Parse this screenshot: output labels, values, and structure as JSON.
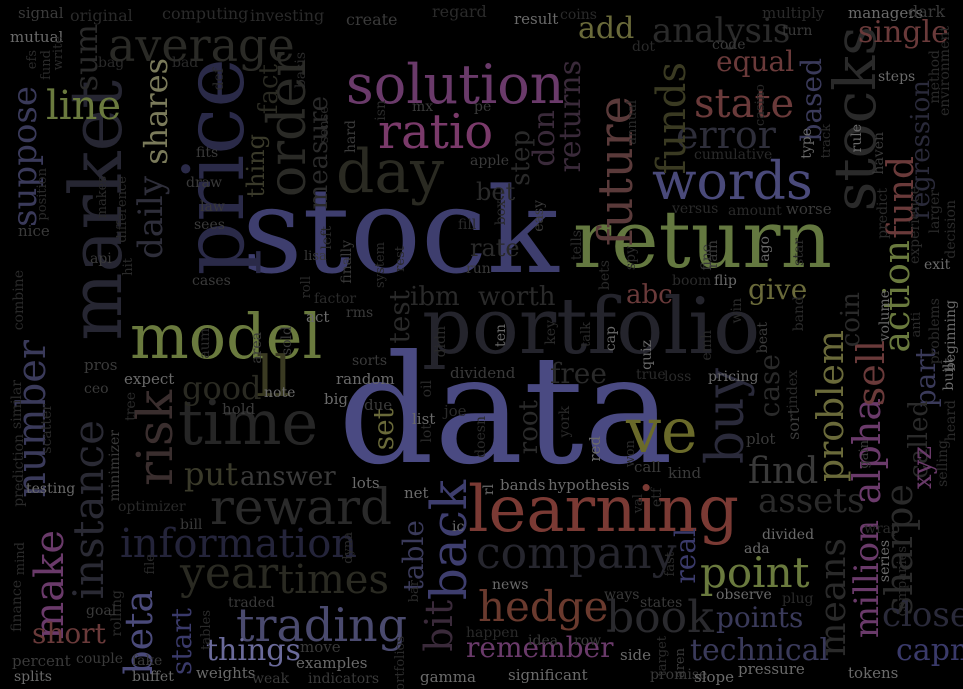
{
  "words": [
    {
      "text": "data",
      "color": "#4a4a82"
    },
    {
      "text": "stock",
      "color": "#3e3e6e"
    },
    {
      "text": "return",
      "color": "#647840"
    },
    {
      "text": "price",
      "color": "#2a2a48"
    },
    {
      "text": "market",
      "color": "#262632"
    },
    {
      "text": "portfolio",
      "color": "#24242c"
    },
    {
      "text": "model",
      "color": "#6a7a3e"
    },
    {
      "text": "learning",
      "color": "#7a3a34"
    },
    {
      "text": "solution",
      "color": "#6a3a6a"
    },
    {
      "text": "ratio",
      "color": "#7a3a6a"
    },
    {
      "text": "time",
      "color": "#262626"
    },
    {
      "text": "ve",
      "color": "#6a6a2a"
    },
    {
      "text": "words",
      "color": "#4a4a7a"
    },
    {
      "text": "day",
      "color": "#2a2a22"
    },
    {
      "text": "order",
      "color": "#2a2a26"
    },
    {
      "text": "reward",
      "color": "#2a2a2a"
    },
    {
      "text": "information",
      "color": "#24243a"
    },
    {
      "text": "company",
      "color": "#26262e"
    },
    {
      "text": "average",
      "color": "#2a2a26"
    },
    {
      "text": "stocks",
      "color": "#2a2a2a"
    },
    {
      "text": "state",
      "color": "#6a3a3a"
    },
    {
      "text": "future",
      "color": "#5a3a3a"
    },
    {
      "text": "error",
      "color": "#2e2e3a"
    },
    {
      "text": "funds",
      "color": "#3a3a22"
    },
    {
      "text": "analysis",
      "color": "#2a2a2a"
    },
    {
      "text": "back",
      "color": "#3e3e6e"
    },
    {
      "text": "bit",
      "color": "#3a2a3a"
    },
    {
      "text": "hedge",
      "color": "#6a3a2e"
    },
    {
      "text": "book",
      "color": "#2a2a2e"
    },
    {
      "text": "point",
      "color": "#6a7a3e"
    },
    {
      "text": "trading",
      "color": "#4a4a6e"
    },
    {
      "text": "beta",
      "color": "#4a4a7a"
    },
    {
      "text": "risk",
      "color": "#3a2e2e"
    },
    {
      "text": "make",
      "color": "#6a3a6a"
    },
    {
      "text": "number",
      "color": "#3a3a5a"
    },
    {
      "text": "instance",
      "color": "#2a2a34"
    },
    {
      "text": "line",
      "color": "#6a7a3e"
    },
    {
      "text": "suppose",
      "color": "#3a3a5a"
    },
    {
      "text": "shares",
      "color": "#7a7a5a"
    },
    {
      "text": "daily",
      "color": "#2e2e3a"
    },
    {
      "text": "sum",
      "color": "#2a2a2a"
    },
    {
      "text": "buy",
      "color": "#2a2a3a"
    },
    {
      "text": "find",
      "color": "#3a3a3a"
    },
    {
      "text": "assets",
      "color": "#2a2a2a"
    },
    {
      "text": "means",
      "color": "#2a2a2a"
    },
    {
      "text": "problem",
      "color": "#6a6a3a"
    },
    {
      "text": "alpha",
      "color": "#6a3a6a"
    },
    {
      "text": "sell",
      "color": "#6a3a3a"
    },
    {
      "text": "action",
      "color": "#6a7a3e"
    },
    {
      "text": "fund",
      "color": "#6a3a3a"
    },
    {
      "text": "sharpe",
      "color": "#2a2a2a"
    },
    {
      "text": "close",
      "color": "#2a2a3a"
    },
    {
      "text": "capm",
      "color": "#3a3a6a"
    },
    {
      "text": "million",
      "color": "#6a3a6a"
    },
    {
      "text": "year",
      "color": "#2a2a22"
    },
    {
      "text": "times",
      "color": "#2a2a22"
    },
    {
      "text": "things",
      "color": "#6a6a9a"
    },
    {
      "text": "remember",
      "color": "#6a3a6a"
    },
    {
      "text": "technical",
      "color": "#3a3a5a"
    },
    {
      "text": "points",
      "color": "#3a3a5a"
    },
    {
      "text": "short",
      "color": "#6a3a3a"
    },
    {
      "text": "start",
      "color": "#3a3a6a"
    },
    {
      "text": "answer",
      "color": "#3a3a3a"
    },
    {
      "text": "put",
      "color": "#3a3a2a"
    },
    {
      "text": "good",
      "color": "#2a2a22"
    },
    {
      "text": "ll",
      "color": "#3a3a22"
    },
    {
      "text": "worth",
      "color": "#2a2a2a"
    },
    {
      "text": "ibm",
      "color": "#2a2a2a"
    },
    {
      "text": "test",
      "color": "#2a2a2a"
    },
    {
      "text": "abc",
      "color": "#6a3a3a"
    },
    {
      "text": "give",
      "color": "#6a6a3a"
    },
    {
      "text": "free",
      "color": "#2a2a2a"
    },
    {
      "text": "set",
      "color": "#6a6a3a"
    },
    {
      "text": "table",
      "color": "#3a3a5a"
    },
    {
      "text": "real",
      "color": "#3a3a6a"
    },
    {
      "text": "add",
      "color": "#6a6a3a"
    },
    {
      "text": "equal",
      "color": "#6a3a3a"
    },
    {
      "text": "based",
      "color": "#3a3a5a"
    },
    {
      "text": "single",
      "color": "#6a3a3a"
    },
    {
      "text": "regression",
      "color": "#2a2a3a"
    },
    {
      "text": "don",
      "color": "#3a2a3a"
    },
    {
      "text": "returns",
      "color": "#3a2a3a"
    },
    {
      "text": "bet",
      "color": "#2a2a2a"
    },
    {
      "text": "rate",
      "color": "#2a2a2a"
    },
    {
      "text": "case",
      "color": "#2a2a2a"
    },
    {
      "text": "part",
      "color": "#3a3a5a"
    },
    {
      "text": "called",
      "color": "#2a2a2a"
    },
    {
      "text": "xyz",
      "color": "#6a3a6a"
    },
    {
      "text": "coin",
      "color": "#2a2a2a"
    },
    {
      "text": "measure",
      "color": "#2a2a2a"
    },
    {
      "text": "fact",
      "color": "#2a2a22"
    },
    {
      "text": "thing",
      "color": "#3a3a2a"
    },
    {
      "text": "root",
      "color": "#2a2a2a"
    },
    {
      "text": "step",
      "color": "#2a2a2a"
    },
    {
      "text": "signal",
      "color": "#3a3a3a"
    },
    {
      "text": "original",
      "color": "#2a2a2a"
    },
    {
      "text": "computing",
      "color": "#2a2a2a"
    },
    {
      "text": "investing",
      "color": "#2a2a2a"
    },
    {
      "text": "create",
      "color": "#3a3a3a"
    },
    {
      "text": "regard",
      "color": "#2a2a2a"
    },
    {
      "text": "result",
      "color": "#6a6a6a"
    },
    {
      "text": "coins",
      "color": "#2a2a2a"
    },
    {
      "text": "multiply",
      "color": "#2a2a2a"
    },
    {
      "text": "managers",
      "color": "#6a6a6a"
    },
    {
      "text": "dark",
      "color": "#3a3a3a"
    },
    {
      "text": "mutual",
      "color": "#6a6a6a"
    },
    {
      "text": "environment",
      "color": "#2a2a2a"
    },
    {
      "text": "method",
      "color": "#2a2a2a"
    },
    {
      "text": "code",
      "color": "#3a3a3a"
    },
    {
      "text": "turn",
      "color": "#3a3a3a"
    },
    {
      "text": "dot",
      "color": "#2a2a2a"
    },
    {
      "text": "bag",
      "color": "#2a2a2a"
    },
    {
      "text": "bad",
      "color": "#2a2a2a"
    },
    {
      "text": "def",
      "color": "#2a2a2a"
    },
    {
      "text": "basis",
      "color": "#2a2a2a"
    },
    {
      "text": "mx",
      "color": "#3a3a3a"
    },
    {
      "text": "pe",
      "color": "#3a3a3a"
    },
    {
      "text": "isn",
      "color": "#2a2a2a"
    },
    {
      "text": "hard",
      "color": "#3a3a3a"
    },
    {
      "text": "apple",
      "color": "#3a3a3a"
    },
    {
      "text": "annual",
      "color": "#2a2a2a"
    },
    {
      "text": "casino",
      "color": "#2a2a2a"
    },
    {
      "text": "steps",
      "color": "#6a6a6a"
    },
    {
      "text": "rule",
      "color": "#6a6a6a"
    },
    {
      "text": "haven",
      "color": "#3a3a3a"
    },
    {
      "text": "cumulative",
      "color": "#2a2a2a"
    },
    {
      "text": "type",
      "color": "#6a6a6a"
    },
    {
      "text": "track",
      "color": "#2a2a2a"
    },
    {
      "text": "amount",
      "color": "#2a2a2a"
    },
    {
      "text": "worse",
      "color": "#3a3a3a"
    },
    {
      "text": "versus",
      "color": "#2a2a2a"
    },
    {
      "text": "predict",
      "color": "#2a2a2a"
    },
    {
      "text": "experience",
      "color": "#2a2a2a"
    },
    {
      "text": "larger",
      "color": "#2a2a2a"
    },
    {
      "text": "decision",
      "color": "#2a2a2a"
    },
    {
      "text": "exit",
      "color": "#6a6a6a"
    },
    {
      "text": "volume",
      "color": "#6a6a6a"
    },
    {
      "text": "gain",
      "color": "#3a3a3a"
    },
    {
      "text": "selling",
      "color": "#2a2a2a"
    },
    {
      "text": "heard",
      "color": "#2a2a2a"
    },
    {
      "text": "built",
      "color": "#6a6a6a"
    },
    {
      "text": "beginning",
      "color": "#6a6a6a"
    },
    {
      "text": "problems",
      "color": "#2a2a2a"
    },
    {
      "text": "anti",
      "color": "#2a2a2a"
    },
    {
      "text": "band",
      "color": "#2a2a2a"
    },
    {
      "text": "beat",
      "color": "#3a3a3a"
    },
    {
      "text": "win",
      "color": "#2a2a2a"
    },
    {
      "text": "emh",
      "color": "#2a2a2a"
    },
    {
      "text": "quiz",
      "color": "#6a6a6a"
    },
    {
      "text": "cap",
      "color": "#6a6a6a"
    },
    {
      "text": "flip",
      "color": "#6a6a6a"
    },
    {
      "text": "boom",
      "color": "#2a2a2a"
    },
    {
      "text": "fine",
      "color": "#3a3a3a"
    },
    {
      "text": "rain",
      "color": "#3a3a3a"
    },
    {
      "text": "star",
      "color": "#2a2a2a"
    },
    {
      "text": "ago",
      "color": "#6a6a6a"
    },
    {
      "text": "spy",
      "color": "#2a2a2a"
    },
    {
      "text": "bets",
      "color": "#2a2a2a"
    },
    {
      "text": "tells",
      "color": "#2a2a2a"
    },
    {
      "text": "easy",
      "color": "#3a3a3a"
    },
    {
      "text": "box",
      "color": "#2a2a2a"
    },
    {
      "text": "fill",
      "color": "#2a2a2a"
    },
    {
      "text": "run",
      "color": "#3a3a3a"
    },
    {
      "text": "lisa",
      "color": "#3a3a3a"
    },
    {
      "text": "left",
      "color": "#2a2a2a"
    },
    {
      "text": "finally",
      "color": "#3a3a3a"
    },
    {
      "text": "system",
      "color": "#2a2a2a"
    },
    {
      "text": "rest",
      "color": "#2a2a2a"
    },
    {
      "text": "ten",
      "color": "#6a6a6a"
    },
    {
      "text": "key",
      "color": "#2a2a2a"
    },
    {
      "text": "talk",
      "color": "#2a2a2a"
    },
    {
      "text": "true",
      "color": "#2a2a2a"
    },
    {
      "text": "loss",
      "color": "#2a2a2a"
    },
    {
      "text": "pricing",
      "color": "#6a6a6a"
    },
    {
      "text": "index",
      "color": "#2a2a2a"
    },
    {
      "text": "sort",
      "color": "#3a3a3a"
    },
    {
      "text": "plot",
      "color": "#3a3a3a"
    },
    {
      "text": "kind",
      "color": "#3a3a3a"
    },
    {
      "text": "call",
      "color": "#3a3a3a"
    },
    {
      "text": "etf",
      "color": "#2a2a2a"
    },
    {
      "text": "won",
      "color": "#2a2a2a"
    },
    {
      "text": "hypothesis",
      "color": "#6a6a6a"
    },
    {
      "text": "bands",
      "color": "#6a6a6a"
    },
    {
      "text": "lots",
      "color": "#6a6a6a"
    },
    {
      "text": "net",
      "color": "#6a6a6a"
    },
    {
      "text": "red",
      "color": "#6a6a6a"
    },
    {
      "text": "york",
      "color": "#2a2a2a"
    },
    {
      "text": "doesn",
      "color": "#2a2a2a"
    },
    {
      "text": "list",
      "color": "#6a6a6a"
    },
    {
      "text": "joe",
      "color": "#2a2a2a"
    },
    {
      "text": "lot",
      "color": "#2a2a2a"
    },
    {
      "text": "dividend",
      "color": "#3a3a3a"
    },
    {
      "text": "didn",
      "color": "#2a2a2a"
    },
    {
      "text": "oil",
      "color": "#2a2a2a"
    },
    {
      "text": "random",
      "color": "#6a6a6a"
    },
    {
      "text": "sorts",
      "color": "#3a3a3a"
    },
    {
      "text": "big",
      "color": "#6a6a6a"
    },
    {
      "text": "due",
      "color": "#3a3a3a"
    },
    {
      "text": "rms",
      "color": "#3a3a3a"
    },
    {
      "text": "act",
      "color": "#6a6a6a"
    },
    {
      "text": "factor",
      "color": "#2a2a2a"
    },
    {
      "text": "roll",
      "color": "#2a2a2a"
    },
    {
      "text": "sold",
      "color": "#3a3a3a"
    },
    {
      "text": "note",
      "color": "#6a6a6a"
    },
    {
      "text": "aum",
      "color": "#2a2a2a"
    },
    {
      "text": "area",
      "color": "#3a3a3a"
    },
    {
      "text": "cases",
      "color": "#3a3a3a"
    },
    {
      "text": "sees",
      "color": "#3a3a3a"
    },
    {
      "text": "law",
      "color": "#3a3a3a"
    },
    {
      "text": "draw",
      "color": "#3a3a3a"
    },
    {
      "text": "fits",
      "color": "#3a3a3a"
    },
    {
      "text": "hit",
      "color": "#2a2a2a"
    },
    {
      "text": "makes",
      "color": "#2a2a2a"
    },
    {
      "text": "difference",
      "color": "#2a2a2a"
    },
    {
      "text": "position",
      "color": "#2a2a2a"
    },
    {
      "text": "nice",
      "color": "#3a3a3a"
    },
    {
      "text": "api",
      "color": "#3a3a3a"
    },
    {
      "text": "combine",
      "color": "#2a2a2a"
    },
    {
      "text": "pros",
      "color": "#3a3a3a"
    },
    {
      "text": "ceo",
      "color": "#3a3a3a"
    },
    {
      "text": "expect",
      "color": "#6a6a6a"
    },
    {
      "text": "tree",
      "color": "#2a2a2a"
    },
    {
      "text": "hold",
      "color": "#3a3a3a"
    },
    {
      "text": "similar",
      "color": "#2a2a2a"
    },
    {
      "text": "scatter",
      "color": "#2a2a2a"
    },
    {
      "text": "minimizer",
      "color": "#3a3a3a"
    },
    {
      "text": "prediction",
      "color": "#2a2a2a"
    },
    {
      "text": "testing",
      "color": "#6a6a6a"
    },
    {
      "text": "optimizer",
      "color": "#2a2a2a"
    },
    {
      "text": "bill",
      "color": "#3a3a3a"
    },
    {
      "text": "rolling",
      "color": "#2a2a2a"
    },
    {
      "text": "file",
      "color": "#2a2a2a"
    },
    {
      "text": "goal",
      "color": "#3a3a3a"
    },
    {
      "text": "finance",
      "color": "#2a2a2a"
    },
    {
      "text": "mind",
      "color": "#2a2a2a"
    },
    {
      "text": "percent",
      "color": "#3a3a3a"
    },
    {
      "text": "couple",
      "color": "#3a3a3a"
    },
    {
      "text": "fake",
      "color": "#3a3a3a"
    },
    {
      "text": "splits",
      "color": "#6a6a6a"
    },
    {
      "text": "buffet",
      "color": "#6a6a6a"
    },
    {
      "text": "weights",
      "color": "#6a6a6a"
    },
    {
      "text": "weak",
      "color": "#3a3a3a"
    },
    {
      "text": "tables",
      "color": "#2a2a2a"
    },
    {
      "text": "traded",
      "color": "#3a3a3a"
    },
    {
      "text": "move",
      "color": "#3a3a3a"
    },
    {
      "text": "examples",
      "color": "#6a6a6a"
    },
    {
      "text": "indicators",
      "color": "#3a3a3a"
    },
    {
      "text": "gamma",
      "color": "#6a6a6a"
    },
    {
      "text": "significant",
      "color": "#6a6a6a"
    },
    {
      "text": "portfolios",
      "color": "#2a2a2a"
    },
    {
      "text": "bar",
      "color": "#2a2a2a"
    },
    {
      "text": "rl",
      "color": "#6a6a6a"
    },
    {
      "text": "news",
      "color": "#6a6a6a"
    },
    {
      "text": "happen",
      "color": "#2a2a2a"
    },
    {
      "text": "idea",
      "color": "#3a3a3a"
    },
    {
      "text": "row",
      "color": "#3a3a3a"
    },
    {
      "text": "side",
      "color": "#6a6a6a"
    },
    {
      "text": "promise",
      "color": "#3a3a3a"
    },
    {
      "text": "ways",
      "color": "#3a3a3a"
    },
    {
      "text": "states",
      "color": "#3a3a3a"
    },
    {
      "text": "target",
      "color": "#2a2a2a"
    },
    {
      "text": "aren",
      "color": "#3a3a3a"
    },
    {
      "text": "slope",
      "color": "#6a6a6a"
    },
    {
      "text": "pressure",
      "color": "#6a6a6a"
    },
    {
      "text": "observe",
      "color": "#6a6a6a"
    },
    {
      "text": "plug",
      "color": "#2a2a2a"
    },
    {
      "text": "ada",
      "color": "#6a6a6a"
    },
    {
      "text": "divided",
      "color": "#6a6a6a"
    },
    {
      "text": "wrap",
      "color": "#2a2a2a"
    },
    {
      "text": "series",
      "color": "#6a6a6a"
    },
    {
      "text": "companies",
      "color": "#2a2a2a"
    },
    {
      "text": "tokens",
      "color": "#6a6a6a"
    },
    {
      "text": "fast",
      "color": "#2a2a2a"
    },
    {
      "text": "val",
      "color": "#2a2a2a"
    },
    {
      "text": "dyna",
      "color": "#2a2a2a"
    },
    {
      "text": "ic",
      "color": "#6a6a6a"
    },
    {
      "text": "write",
      "color": "#2a2a2a"
    },
    {
      "text": "fund",
      "color": "#2a2a2a"
    },
    {
      "text": "efs",
      "color": "#2a2a2a"
    },
    {
      "text": "sense",
      "color": "#2a2a2a"
    }
  ]
}
